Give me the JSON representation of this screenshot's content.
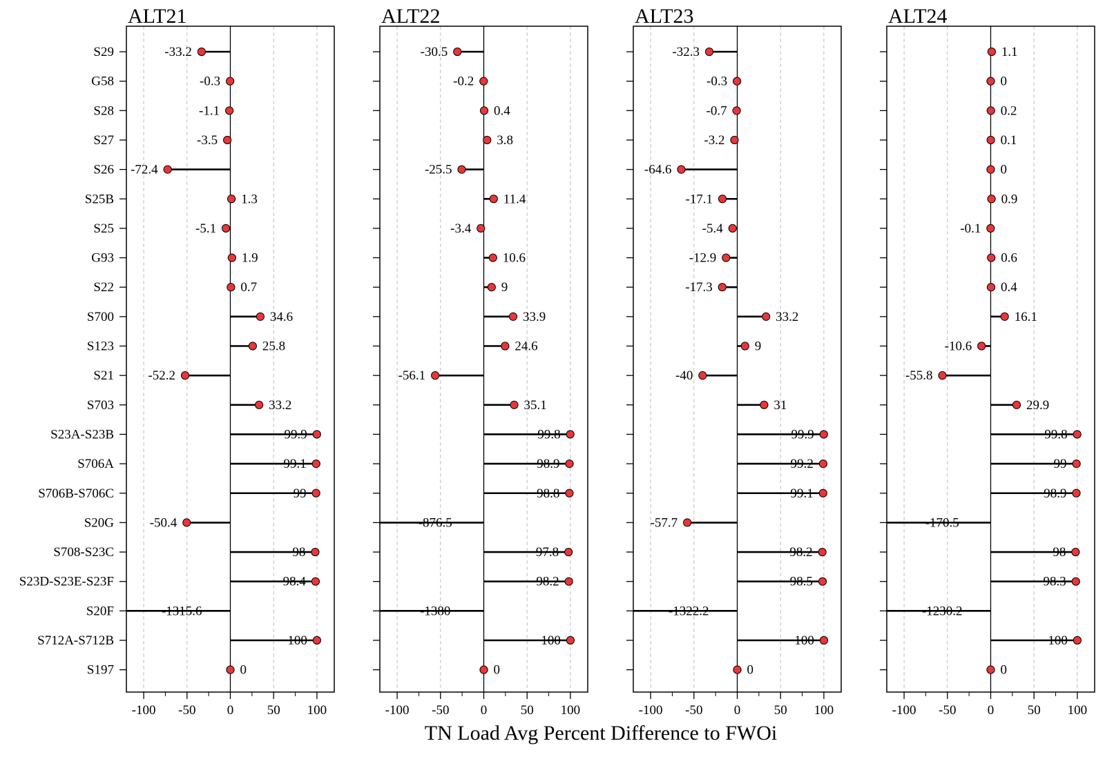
{
  "chart_data": {
    "type": "lollipop",
    "xlabel": "TN Load Avg Percent Difference to FWOi",
    "xlim": [
      -120,
      120
    ],
    "xticks": [
      -100,
      -50,
      0,
      50,
      100
    ],
    "categories": [
      "S29",
      "G58",
      "S28",
      "S27",
      "S26",
      "S25B",
      "S25",
      "G93",
      "S22",
      "S700",
      "S123",
      "S21",
      "S703",
      "S23A-S23B",
      "S706A",
      "S706B-S706C",
      "S20G",
      "S708-S23C",
      "S23D-S23E-S23F",
      "S20F",
      "S712A-S712B",
      "S197"
    ],
    "grid": "vertical dashed",
    "colors": {
      "point": "#e8373a",
      "stem": "#000000",
      "grid": "#bdbdbd"
    },
    "panels": [
      {
        "title": "ALT21",
        "values": [
          -33.2,
          -0.3,
          -1.1,
          -3.5,
          -72.4,
          1.3,
          -5.1,
          1.9,
          0.7,
          34.6,
          25.8,
          -52.2,
          33.2,
          99.9,
          99.1,
          99,
          -50.4,
          98,
          98.4,
          -1315.6,
          100,
          0
        ]
      },
      {
        "title": "ALT22",
        "values": [
          -30.5,
          -0.2,
          0.4,
          3.8,
          -25.5,
          11.4,
          -3.4,
          10.6,
          9,
          33.9,
          24.6,
          -56.1,
          35.1,
          99.8,
          98.9,
          98.8,
          -876.5,
          97.8,
          98.2,
          -1380,
          100,
          0
        ]
      },
      {
        "title": "ALT23",
        "values": [
          -32.3,
          -0.3,
          -0.7,
          -3.2,
          -64.6,
          -17.1,
          -5.4,
          -12.9,
          -17.3,
          33.2,
          9,
          -40,
          31,
          99.9,
          99.2,
          99.1,
          -57.7,
          98.2,
          98.5,
          -1322.2,
          100,
          0
        ]
      },
      {
        "title": "ALT24",
        "values": [
          1.1,
          0,
          0.2,
          0.1,
          0,
          0.9,
          -0.1,
          0.6,
          0.4,
          16.1,
          -10.6,
          -55.8,
          29.9,
          99.8,
          99,
          98.9,
          -170.5,
          98,
          98.3,
          -1230.2,
          100,
          0
        ]
      }
    ]
  }
}
